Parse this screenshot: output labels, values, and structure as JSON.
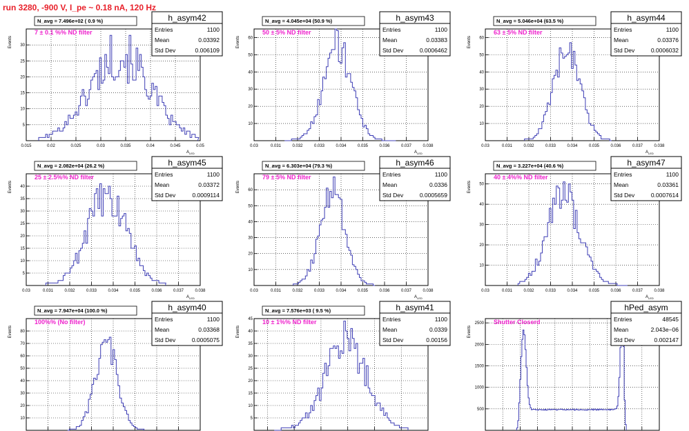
{
  "page": {
    "title": "run 3280,  -900 V, I_pe ~ 0.18 nA, 120 Hz"
  },
  "axis_labels": {
    "y": "Events",
    "x": "A_{LED}"
  },
  "colors": {
    "hist": "#3c3cb4",
    "title": "#e8202a",
    "annotation": "#ee22cc"
  },
  "chart_data": [
    {
      "type": "histogram",
      "name": "h_asym42",
      "header": "N_avg = 7.496e+02 ( 0.9 %)",
      "annotation": "7 ± 0.1 %% ND filter",
      "stats": [
        [
          "Entries",
          "1100"
        ],
        [
          "Mean",
          "0.03392"
        ],
        [
          "Std Dev",
          "0.006109"
        ]
      ],
      "xlim": [
        0.015,
        0.05
      ],
      "xticks": [
        0.015,
        0.02,
        0.025,
        0.03,
        0.035,
        0.04,
        0.045,
        0.05
      ],
      "xtick_labels": [
        "0.015",
        "0.02",
        "0.025",
        "0.03",
        "0.035",
        "0.04",
        "0.045",
        "0.05"
      ],
      "ylim": [
        0,
        35
      ],
      "yticks": [
        5,
        10,
        15,
        20,
        25,
        30
      ],
      "ytick_labels": [
        "5",
        "10",
        "15",
        "20",
        "25",
        "30"
      ],
      "shape": {
        "kind": "gauss",
        "mean": 0.0339,
        "sigma": 0.0061,
        "peak": 27,
        "noise": 0.3,
        "xmin": 0.0175,
        "xmax": 0.0495,
        "step": 0.00035
      }
    },
    {
      "type": "histogram",
      "name": "h_asym43",
      "header": "N_avg = 4.045e+04 (50.9 %)",
      "annotation": "50 ± 5% ND filter",
      "stats": [
        [
          "Entries",
          "1100"
        ],
        [
          "Mean",
          "0.03383"
        ],
        [
          "Std Dev",
          "0.0006462"
        ]
      ],
      "xlim": [
        0.03,
        0.038
      ],
      "xticks": [
        0.03,
        0.031,
        0.032,
        0.033,
        0.034,
        0.035,
        0.036,
        0.037,
        0.038
      ],
      "xtick_labels": [
        "0.03",
        "0.031",
        "0.032",
        "0.033",
        "0.034",
        "0.035",
        "0.036",
        "0.037",
        "0.038"
      ],
      "ylim": [
        0,
        65
      ],
      "yticks": [
        10,
        20,
        30,
        40,
        50,
        60
      ],
      "ytick_labels": [
        "10",
        "20",
        "30",
        "40",
        "50",
        "60"
      ],
      "shape": {
        "kind": "gauss",
        "mean": 0.03383,
        "sigma": 0.00065,
        "peak": 55,
        "noise": 0.2,
        "xmin": 0.0314,
        "xmax": 0.0365,
        "step": 8e-05
      }
    },
    {
      "type": "histogram",
      "name": "h_asym44",
      "header": "N_avg = 5.046e+04 (63.5 %)",
      "annotation": "63 ± 5% ND filter",
      "stats": [
        [
          "Entries",
          "1100"
        ],
        [
          "Mean",
          "0.03376"
        ],
        [
          "Std Dev",
          "0.0006032"
        ]
      ],
      "xlim": [
        0.03,
        0.038
      ],
      "xticks": [
        0.03,
        0.031,
        0.032,
        0.033,
        0.034,
        0.035,
        0.036,
        0.037,
        0.038
      ],
      "xtick_labels": [
        "0.03",
        "0.031",
        "0.032",
        "0.033",
        "0.034",
        "0.035",
        "0.036",
        "0.037",
        "0.038"
      ],
      "ylim": [
        0,
        65
      ],
      "yticks": [
        10,
        20,
        30,
        40,
        50,
        60
      ],
      "ytick_labels": [
        "10",
        "20",
        "30",
        "40",
        "50",
        "60"
      ],
      "shape": {
        "kind": "gauss",
        "mean": 0.03376,
        "sigma": 0.0006,
        "peak": 56,
        "noise": 0.2,
        "xmin": 0.0318,
        "xmax": 0.0358,
        "step": 8e-05
      }
    },
    {
      "type": "histogram",
      "name": "h_asym45",
      "header": "N_avg = 2.082e+04 (26.2 %)",
      "annotation": "25 ± 2.5%% ND filter",
      "stats": [
        [
          "Entries",
          "1100"
        ],
        [
          "Mean",
          "0.03372"
        ],
        [
          "Std Dev",
          "0.0009114"
        ]
      ],
      "xlim": [
        0.03,
        0.038
      ],
      "xticks": [
        0.03,
        0.031,
        0.032,
        0.033,
        0.034,
        0.035,
        0.036,
        0.037,
        0.038
      ],
      "xtick_labels": [
        "0.03",
        "0.031",
        "0.032",
        "0.033",
        "0.034",
        "0.035",
        "0.036",
        "0.037",
        "0.038"
      ],
      "ylim": [
        0,
        45
      ],
      "yticks": [
        5,
        10,
        15,
        20,
        25,
        30,
        35,
        40
      ],
      "ytick_labels": [
        "5",
        "10",
        "15",
        "20",
        "25",
        "30",
        "35",
        "40"
      ],
      "shape": {
        "kind": "gauss",
        "mean": 0.03372,
        "sigma": 0.00091,
        "peak": 36,
        "noise": 0.25,
        "xmin": 0.0309,
        "xmax": 0.0364,
        "step": 8e-05
      }
    },
    {
      "type": "histogram",
      "name": "h_asym46",
      "header": "N_avg = 6.303e+04 (79.3 %)",
      "annotation": "79 ± 5% ND filter",
      "stats": [
        [
          "Entries",
          "1100"
        ],
        [
          "Mean",
          "0.0336"
        ],
        [
          "Std Dev",
          "0.0005659"
        ]
      ],
      "xlim": [
        0.03,
        0.038
      ],
      "xticks": [
        0.03,
        0.031,
        0.032,
        0.033,
        0.034,
        0.035,
        0.036,
        0.037,
        0.038
      ],
      "xtick_labels": [
        "0.03",
        "0.031",
        "0.032",
        "0.033",
        "0.034",
        "0.035",
        "0.036",
        "0.037",
        "0.038"
      ],
      "ylim": [
        0,
        70
      ],
      "yticks": [
        10,
        20,
        30,
        40,
        50,
        60
      ],
      "ytick_labels": [
        "10",
        "20",
        "30",
        "40",
        "50",
        "60"
      ],
      "shape": {
        "kind": "gauss",
        "mean": 0.0336,
        "sigma": 0.00057,
        "peak": 58,
        "noise": 0.2,
        "xmin": 0.0318,
        "xmax": 0.0355,
        "step": 8e-05
      }
    },
    {
      "type": "histogram",
      "name": "h_asym47",
      "header": "N_avg = 3.227e+04 (40.6 %)",
      "annotation": "40 ± 4%% ND filter",
      "stats": [
        [
          "Entries",
          "1100"
        ],
        [
          "Mean",
          "0.03361"
        ],
        [
          "Std Dev",
          "0.0007614"
        ]
      ],
      "xlim": [
        0.03,
        0.038
      ],
      "xticks": [
        0.03,
        0.031,
        0.032,
        0.033,
        0.034,
        0.035,
        0.036,
        0.037,
        0.038
      ],
      "xtick_labels": [
        "0.03",
        "0.031",
        "0.032",
        "0.033",
        "0.034",
        "0.035",
        "0.036",
        "0.037",
        "0.038"
      ],
      "ylim": [
        0,
        55
      ],
      "yticks": [
        10,
        20,
        30,
        40,
        50
      ],
      "ytick_labels": [
        "10",
        "20",
        "30",
        "40",
        "50"
      ],
      "shape": {
        "kind": "gauss",
        "mean": 0.03361,
        "sigma": 0.00076,
        "peak": 44,
        "noise": 0.22,
        "xmin": 0.0315,
        "xmax": 0.0365,
        "step": 8e-05
      }
    },
    {
      "type": "histogram",
      "name": "h_asym40",
      "header": "N_avg = 7.947e+04 (100.0 %)",
      "annotation": "100%% (No filter)",
      "stats": [
        [
          "Entries",
          "1100"
        ],
        [
          "Mean",
          "0.03368"
        ],
        [
          "Std Dev",
          "0.0005075"
        ]
      ],
      "xlim": [
        0.03,
        0.038
      ],
      "xticks": [
        0.03,
        0.031,
        0.032,
        0.033,
        0.034,
        0.035,
        0.036,
        0.037,
        0.038
      ],
      "xtick_labels": [
        "0.03",
        "0.031",
        "0.032",
        "0.033",
        "0.034",
        "0.035",
        "0.036",
        "0.037",
        "0.038"
      ],
      "ylim": [
        0,
        90
      ],
      "yticks": [
        10,
        20,
        30,
        40,
        50,
        60,
        70,
        80
      ],
      "ytick_labels": [
        "10",
        "20",
        "30",
        "40",
        "50",
        "60",
        "70",
        "80"
      ],
      "shape": {
        "kind": "gauss",
        "mean": 0.03368,
        "sigma": 0.00051,
        "peak": 70,
        "noise": 0.18,
        "xmin": 0.0319,
        "xmax": 0.0354,
        "step": 8e-05
      }
    },
    {
      "type": "histogram",
      "name": "h_asym41",
      "header": "N_avg = 7.576e+03 ( 9.5 %)",
      "annotation": "10 ± 1%% ND filter",
      "stats": [
        [
          "Entries",
          "1100"
        ],
        [
          "Mean",
          "0.0339"
        ],
        [
          "Std Dev",
          "0.00156"
        ]
      ],
      "xlim": [
        0.027,
        0.04
      ],
      "xticks": [
        0.028,
        0.03,
        0.032,
        0.034,
        0.036,
        0.038,
        0.04
      ],
      "xtick_labels": [
        "0.028",
        "0.03",
        "0.032",
        "0.034",
        "0.036",
        "0.038",
        "0.04"
      ],
      "ylim": [
        0,
        45
      ],
      "yticks": [
        5,
        10,
        15,
        20,
        25,
        30,
        35,
        40,
        45
      ],
      "ytick_labels": [
        "5",
        "10",
        "15",
        "20",
        "25",
        "30",
        "35",
        "40",
        "45"
      ],
      "shape": {
        "kind": "gauss",
        "mean": 0.0339,
        "sigma": 0.00156,
        "peak": 36,
        "noise": 0.25,
        "xmin": 0.0285,
        "xmax": 0.0385,
        "step": 0.00013
      }
    },
    {
      "type": "histogram",
      "name": "hPed_asym",
      "header": "",
      "annotation": "Shutter Closerd",
      "stats": [
        [
          "Entries",
          "48545"
        ],
        [
          "Mean",
          "2.043e−06"
        ],
        [
          "Std Dev",
          "0.002147"
        ]
      ],
      "xlim": [
        -0.005,
        0.005
      ],
      "xticks": [
        -0.005,
        -0.004,
        -0.003,
        -0.002,
        -0.001,
        0,
        0.001,
        0.002,
        0.003,
        0.004,
        0.005
      ],
      "xtick_labels": [
        "−0.005",
        "−0.004",
        "−0.003",
        "−0.002",
        "−0.001",
        "0",
        "0.001",
        "0.002",
        "0.003",
        "0.004",
        "0.005"
      ],
      "ylim": [
        0,
        2600
      ],
      "yticks": [
        500,
        1000,
        1500,
        2000,
        2500
      ],
      "ytick_labels": [
        "500",
        "1000",
        "1500",
        "2000",
        "2500"
      ],
      "shape": {
        "kind": "pedestal",
        "plateau": 480,
        "peak1_x": -0.0028,
        "peak1_h": 1850,
        "peak1_w": 0.00015,
        "peak2_x": 0.0029,
        "peak2_h": 2600,
        "peak2_w": 0.00012,
        "xmin": -0.0032,
        "xmax": 0.0031,
        "step": 6e-05
      }
    }
  ]
}
